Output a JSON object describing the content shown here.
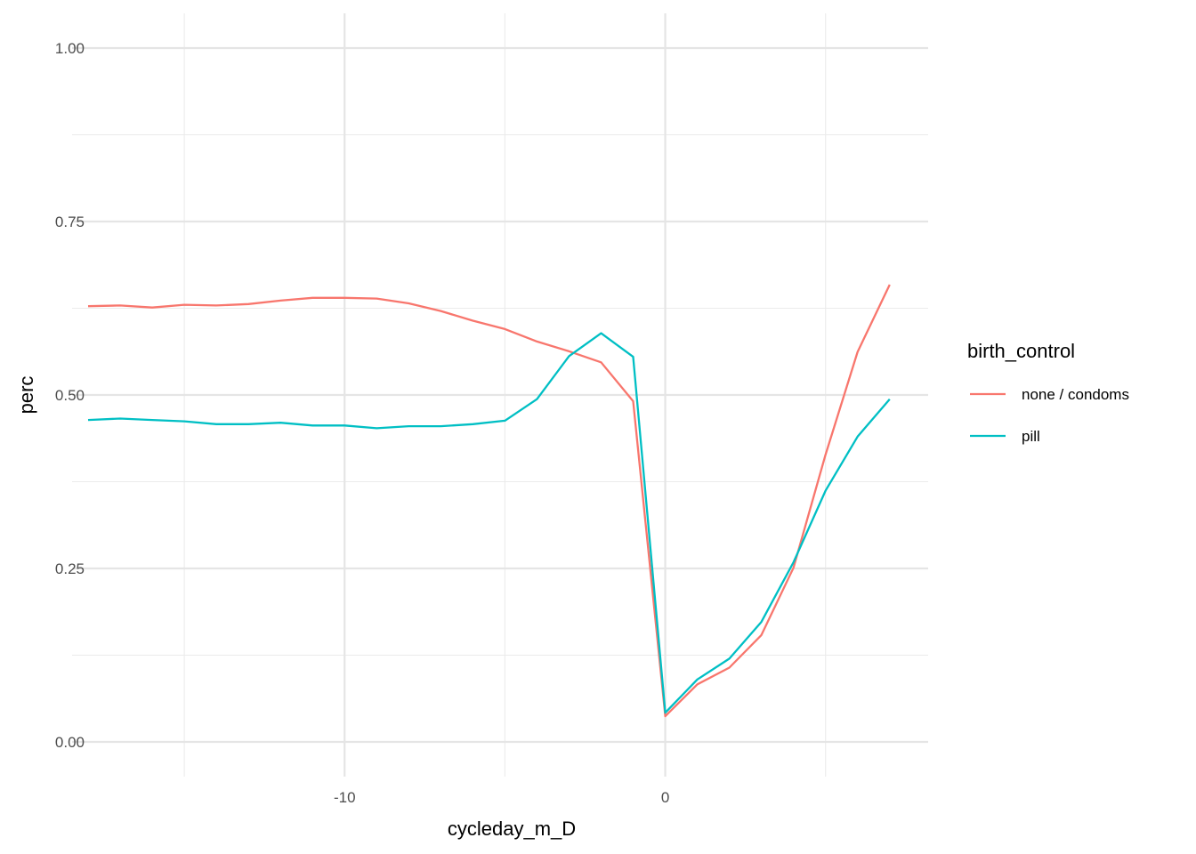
{
  "chart_data": {
    "type": "line",
    "xlabel": "cycleday_m_D",
    "ylabel": "perc",
    "xlim": [
      -18.5,
      8.2
    ],
    "ylim": [
      -0.05,
      1.05
    ],
    "x_ticks": [
      -10,
      0
    ],
    "x_tick_labels": [
      "-10",
      "0"
    ],
    "y_ticks": [
      0,
      0.25,
      0.5,
      0.75,
      1.0
    ],
    "y_tick_labels": [
      "0.00",
      "0.25",
      "0.50",
      "0.75",
      "1.00"
    ],
    "grid": true,
    "legend": {
      "title": "birth_control",
      "placement": "right"
    },
    "x": [
      -18,
      -17,
      -16,
      -15,
      -14,
      -13,
      -12,
      -11,
      -10,
      -9,
      -8,
      -7,
      -6,
      -5,
      -4,
      -3,
      -2,
      -1,
      0,
      1,
      2,
      3,
      4,
      5,
      6,
      7
    ],
    "series": [
      {
        "name": "none / condoms",
        "color": "#F8766D",
        "values": [
          0.628,
          0.629,
          0.626,
          0.63,
          0.629,
          0.631,
          0.636,
          0.64,
          0.64,
          0.639,
          0.632,
          0.621,
          0.607,
          0.595,
          0.577,
          0.563,
          0.547,
          0.491,
          0.037,
          0.083,
          0.107,
          0.154,
          0.251,
          0.414,
          0.562,
          0.659
        ]
      },
      {
        "name": "pill",
        "color": "#00BFC4",
        "values": [
          0.464,
          0.466,
          0.464,
          0.462,
          0.458,
          0.458,
          0.46,
          0.456,
          0.456,
          0.452,
          0.455,
          0.455,
          0.458,
          0.463,
          0.494,
          0.556,
          0.589,
          0.555,
          0.042,
          0.09,
          0.12,
          0.173,
          0.259,
          0.362,
          0.44,
          0.494
        ]
      }
    ]
  }
}
